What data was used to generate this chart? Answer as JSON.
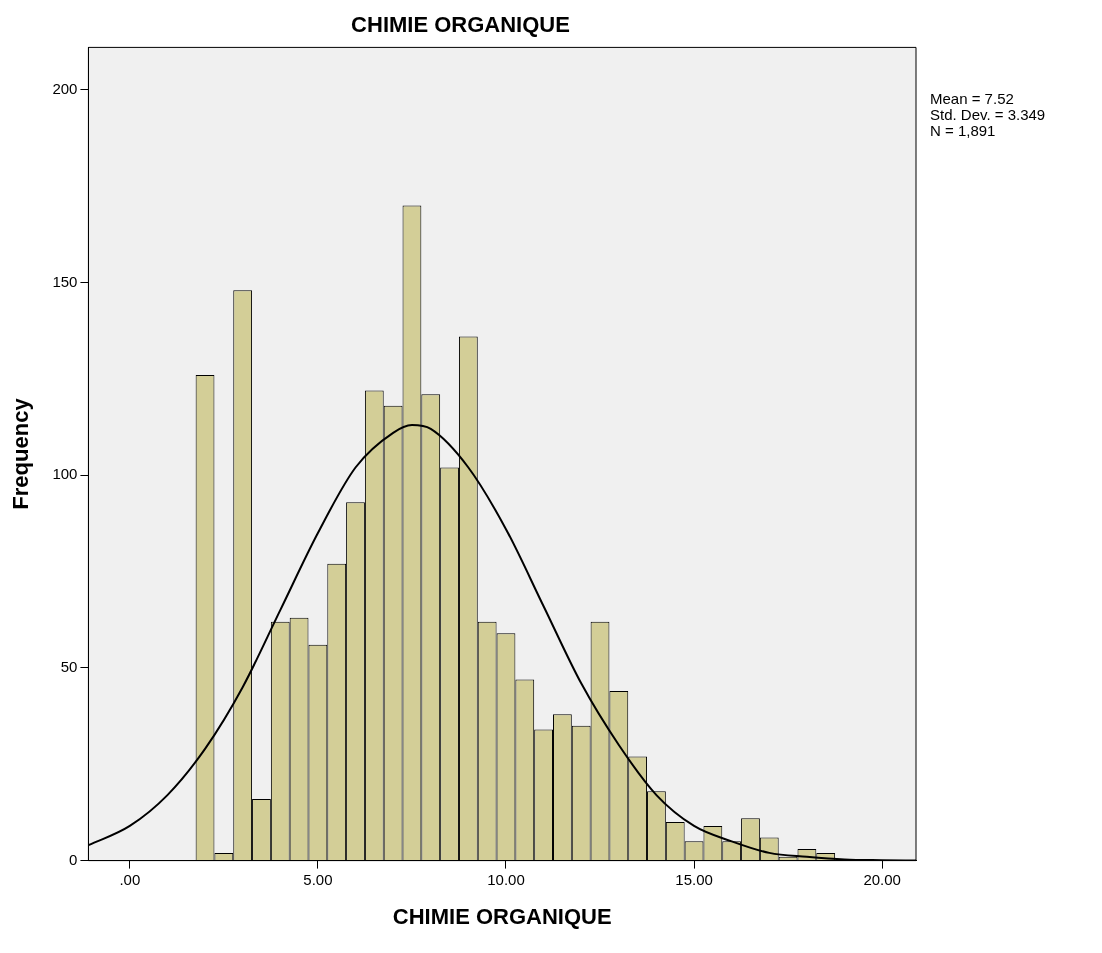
{
  "chart_data": {
    "type": "histogram",
    "title": "CHIMIE ORGANIQUE",
    "xlabel": "CHIMIE ORGANIQUE",
    "ylabel": "Frequency",
    "annotations": [
      "Mean = 7.52",
      "Std. Dev. = 3.349",
      "N = 1,891"
    ],
    "bins": [
      1.75,
      2.25,
      2.75,
      3.25,
      3.75,
      4.25,
      4.75,
      5.25,
      5.75,
      6.25,
      6.75,
      7.25,
      7.75,
      8.25,
      8.75,
      9.25,
      9.75,
      10.25,
      10.75,
      11.25,
      11.75,
      12.25,
      12.75,
      13.25,
      13.75,
      14.25,
      14.75,
      15.25,
      15.75,
      16.25,
      16.75,
      17.25,
      17.75,
      18.25,
      18.75
    ],
    "values": [
      126,
      2,
      148,
      16,
      62,
      63,
      56,
      77,
      93,
      122,
      118,
      170,
      121,
      102,
      136,
      62,
      59,
      47,
      34,
      38,
      35,
      62,
      44,
      27,
      18,
      10,
      5,
      9,
      5,
      11,
      6,
      1,
      3,
      2
    ],
    "color": "#d3ce97",
    "series": [
      {
        "type": "line",
        "color": "#000000",
        "x": [
          -1.1,
          0,
          1,
          2,
          3,
          4,
          5,
          6,
          7,
          7.5,
          8,
          9,
          10,
          11,
          12,
          13,
          14,
          15,
          16,
          17,
          18,
          19,
          20,
          20.9
        ],
        "values": [
          4,
          9,
          17,
          29,
          45,
          65,
          85,
          102,
          111,
          113,
          112,
          102,
          86,
          66,
          46,
          30,
          17,
          9,
          5,
          2,
          1,
          0.3,
          0.1,
          0
        ]
      }
    ],
    "xlim": [
      -1.1,
      20.9
    ],
    "ylim": [
      0,
      211
    ],
    "xticks": [
      {
        "value": 0,
        "label": ".00"
      },
      {
        "value": 5,
        "label": "5.00"
      },
      {
        "value": 10,
        "label": "10.00"
      },
      {
        "value": 15,
        "label": "15.00"
      },
      {
        "value": 20,
        "label": "20.00"
      }
    ],
    "yticks": [
      0,
      50,
      100,
      150,
      200
    ],
    "grid": false,
    "legend": false,
    "marker": "none",
    "line_style": "solid"
  }
}
